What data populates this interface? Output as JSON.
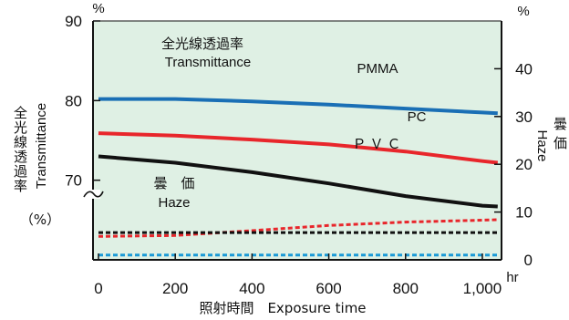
{
  "chart_data": {
    "type": "line",
    "x": [
      0,
      200,
      400,
      600,
      800,
      1000,
      1040
    ],
    "x_tick_labels": [
      "0",
      "200",
      "400",
      "600",
      "800",
      "1,000"
    ],
    "x_unit": "hr",
    "xlabel": "照射時間　Exposure time",
    "xlim": [
      0,
      1050
    ],
    "left_axis": {
      "label_jp": "全光線透過率",
      "label_en": "Transmittance",
      "unit_top": "%",
      "unit_side": "（%）",
      "ticks": [
        "70",
        "80",
        "90"
      ],
      "ylim": [
        60,
        90
      ],
      "axis_break": true
    },
    "right_axis": {
      "label_jp": "曇価",
      "label_en": "Haze",
      "unit_top": "%",
      "ticks": [
        "0",
        "10",
        "20",
        "30",
        "40"
      ],
      "ylim": [
        0,
        50
      ]
    },
    "annotations": {
      "transmittance_jp": "全光線透過率",
      "transmittance_en": "Transmittance",
      "haze_jp": "曇　価",
      "haze_en": "Haze"
    },
    "series": [
      {
        "name": "PMMA",
        "axis": "left",
        "color": "#1a6fb5",
        "style": "solid",
        "values": [
          80.2,
          80.2,
          79.9,
          79.5,
          79.0,
          78.5,
          78.4
        ]
      },
      {
        "name": "PC",
        "axis": "left",
        "color": "#e8262b",
        "style": "solid",
        "values": [
          75.9,
          75.6,
          75.1,
          74.5,
          73.6,
          72.4,
          72.2
        ]
      },
      {
        "name": "ＰＶＣ",
        "axis": "left",
        "color": "#111111",
        "style": "solid",
        "values": [
          73.0,
          72.2,
          71.0,
          69.6,
          68.0,
          66.8,
          66.7
        ]
      },
      {
        "name": "",
        "axis": "right",
        "color": "#e8262b",
        "style": "dashed",
        "values": [
          4.9,
          5.1,
          6.1,
          7.2,
          7.9,
          8.3,
          8.4
        ]
      },
      {
        "name": "",
        "axis": "right",
        "color": "#111111",
        "style": "dashed",
        "values": [
          5.7,
          5.7,
          5.7,
          5.7,
          5.7,
          5.7,
          5.7
        ]
      },
      {
        "name": "",
        "axis": "right",
        "color": "#1a9ad6",
        "style": "dashed",
        "values": [
          1.0,
          1.0,
          1.0,
          1.0,
          1.0,
          1.0,
          1.0
        ]
      }
    ],
    "background": "#dff0e4",
    "grid": false,
    "legend": "inline labels"
  }
}
